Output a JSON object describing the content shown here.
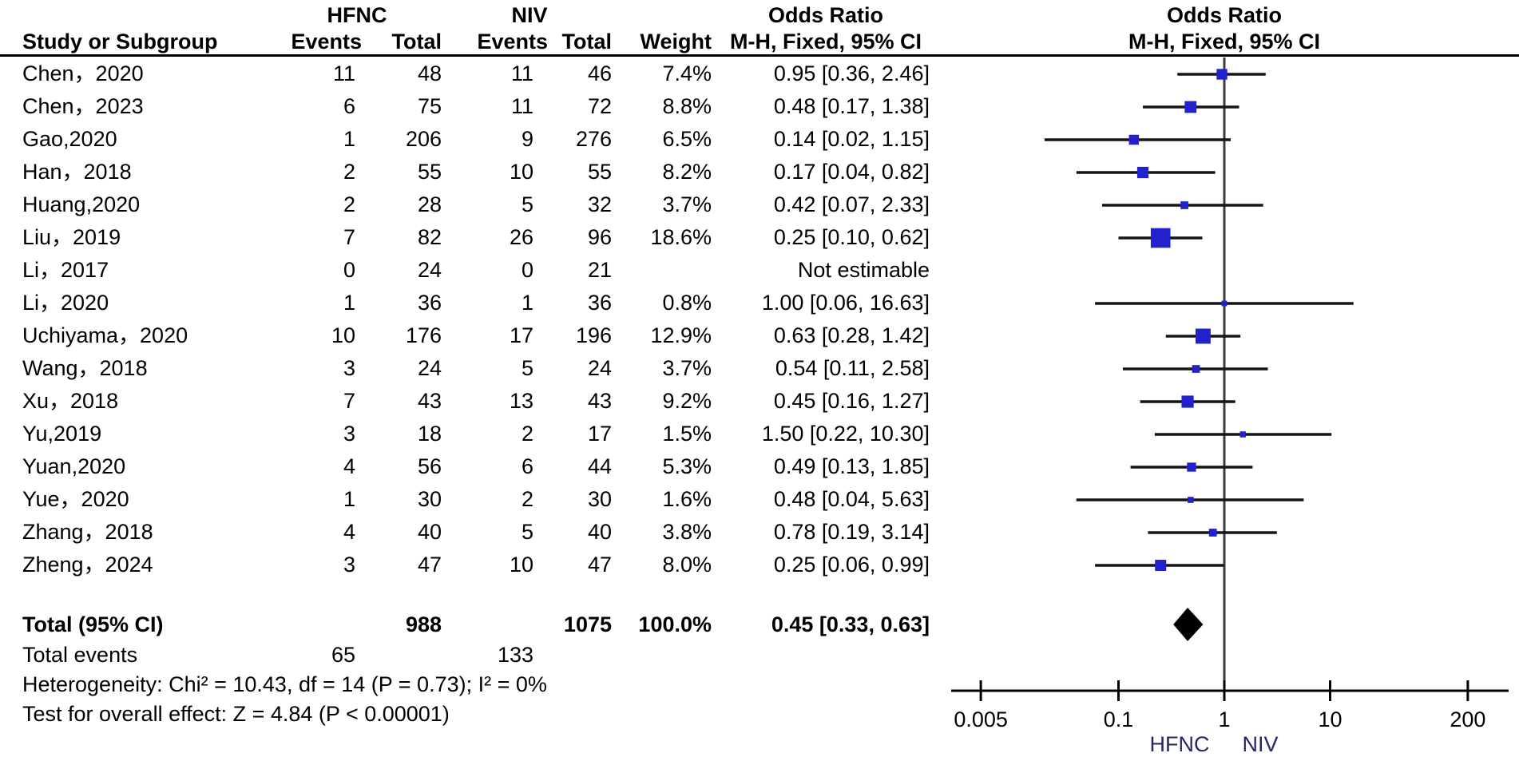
{
  "colors": {
    "marker_blue": "#2121cd",
    "ci_line": "#151515",
    "no_effect_line": "#3c3c3c",
    "axis_black": "#000000",
    "diamond_black": "#000000",
    "favours_navy": "#26266b",
    "text_black": "#000000"
  },
  "header": {
    "group1": "HFNC",
    "group2": "NIV",
    "col_study": "Study or Subgroup",
    "col_events1": "Events",
    "col_total1": "Total",
    "col_events2": "Events",
    "col_total2": "Total",
    "col_weight": "Weight",
    "or_title_left": "Odds Ratio",
    "or_subtitle_left": "M-H, Fixed, 95% CI",
    "or_title_plot": "Odds Ratio",
    "or_subtitle_plot": "M-H, Fixed, 95% CI"
  },
  "chart_data": {
    "type": "forest",
    "subtype": "meta-analysis odds ratio (M-H, Fixed, 95% CI)",
    "x_scale": "log10",
    "xlim": [
      0.0025,
      470
    ],
    "x_ticks": [
      0.005,
      0.1,
      1,
      10,
      200
    ],
    "x_tick_labels": [
      "0.005",
      "0.1",
      "1",
      "10",
      "200"
    ],
    "no_effect_value": 1,
    "favours_labels": [
      "HFNC",
      "NIV"
    ],
    "studies": [
      {
        "name": "Chen，2020",
        "hfnc_events": 11,
        "hfnc_total": 48,
        "niv_events": 11,
        "niv_total": 46,
        "weight": "7.4%",
        "or": 0.95,
        "ci_low": 0.36,
        "ci_high": 2.46,
        "ci_text": "0.95 [0.36, 2.46]"
      },
      {
        "name": "Chen，2023",
        "hfnc_events": 6,
        "hfnc_total": 75,
        "niv_events": 11,
        "niv_total": 72,
        "weight": "8.8%",
        "or": 0.48,
        "ci_low": 0.17,
        "ci_high": 1.38,
        "ci_text": "0.48 [0.17, 1.38]"
      },
      {
        "name": "Gao,2020",
        "hfnc_events": 1,
        "hfnc_total": 206,
        "niv_events": 9,
        "niv_total": 276,
        "weight": "6.5%",
        "or": 0.14,
        "ci_low": 0.02,
        "ci_high": 1.15,
        "ci_text": "0.14 [0.02, 1.15]"
      },
      {
        "name": "Han，2018",
        "hfnc_events": 2,
        "hfnc_total": 55,
        "niv_events": 10,
        "niv_total": 55,
        "weight": "8.2%",
        "or": 0.17,
        "ci_low": 0.04,
        "ci_high": 0.82,
        "ci_text": "0.17 [0.04, 0.82]"
      },
      {
        "name": "Huang,2020",
        "hfnc_events": 2,
        "hfnc_total": 28,
        "niv_events": 5,
        "niv_total": 32,
        "weight": "3.7%",
        "or": 0.42,
        "ci_low": 0.07,
        "ci_high": 2.33,
        "ci_text": "0.42 [0.07, 2.33]"
      },
      {
        "name": "Liu，2019",
        "hfnc_events": 7,
        "hfnc_total": 82,
        "niv_events": 26,
        "niv_total": 96,
        "weight": "18.6%",
        "or": 0.25,
        "ci_low": 0.1,
        "ci_high": 0.62,
        "ci_text": "0.25 [0.10, 0.62]"
      },
      {
        "name": "Li，2017",
        "hfnc_events": 0,
        "hfnc_total": 24,
        "niv_events": 0,
        "niv_total": 21,
        "weight": "",
        "or": null,
        "ci_low": null,
        "ci_high": null,
        "ci_text": "Not estimable"
      },
      {
        "name": "Li，2020",
        "hfnc_events": 1,
        "hfnc_total": 36,
        "niv_events": 1,
        "niv_total": 36,
        "weight": "0.8%",
        "or": 1.0,
        "ci_low": 0.06,
        "ci_high": 16.63,
        "ci_text": "1.00 [0.06, 16.63]"
      },
      {
        "name": "Uchiyama，2020",
        "hfnc_events": 10,
        "hfnc_total": 176,
        "niv_events": 17,
        "niv_total": 196,
        "weight": "12.9%",
        "or": 0.63,
        "ci_low": 0.28,
        "ci_high": 1.42,
        "ci_text": "0.63 [0.28, 1.42]"
      },
      {
        "name": "Wang，2018",
        "hfnc_events": 3,
        "hfnc_total": 24,
        "niv_events": 5,
        "niv_total": 24,
        "weight": "3.7%",
        "or": 0.54,
        "ci_low": 0.11,
        "ci_high": 2.58,
        "ci_text": "0.54 [0.11, 2.58]"
      },
      {
        "name": "Xu，2018",
        "hfnc_events": 7,
        "hfnc_total": 43,
        "niv_events": 13,
        "niv_total": 43,
        "weight": "9.2%",
        "or": 0.45,
        "ci_low": 0.16,
        "ci_high": 1.27,
        "ci_text": "0.45 [0.16, 1.27]"
      },
      {
        "name": "Yu,2019",
        "hfnc_events": 3,
        "hfnc_total": 18,
        "niv_events": 2,
        "niv_total": 17,
        "weight": "1.5%",
        "or": 1.5,
        "ci_low": 0.22,
        "ci_high": 10.3,
        "ci_text": "1.50 [0.22, 10.30]"
      },
      {
        "name": "Yuan,2020",
        "hfnc_events": 4,
        "hfnc_total": 56,
        "niv_events": 6,
        "niv_total": 44,
        "weight": "5.3%",
        "or": 0.49,
        "ci_low": 0.13,
        "ci_high": 1.85,
        "ci_text": "0.49 [0.13, 1.85]"
      },
      {
        "name": "Yue，2020",
        "hfnc_events": 1,
        "hfnc_total": 30,
        "niv_events": 2,
        "niv_total": 30,
        "weight": "1.6%",
        "or": 0.48,
        "ci_low": 0.04,
        "ci_high": 5.63,
        "ci_text": "0.48 [0.04, 5.63]"
      },
      {
        "name": "Zhang，2018",
        "hfnc_events": 4,
        "hfnc_total": 40,
        "niv_events": 5,
        "niv_total": 40,
        "weight": "3.8%",
        "or": 0.78,
        "ci_low": 0.19,
        "ci_high": 3.14,
        "ci_text": "0.78 [0.19, 3.14]"
      },
      {
        "name": "Zheng，2024",
        "hfnc_events": 3,
        "hfnc_total": 47,
        "niv_events": 10,
        "niv_total": 47,
        "weight": "8.0%",
        "or": 0.25,
        "ci_low": 0.06,
        "ci_high": 0.99,
        "ci_text": "0.25 [0.06, 0.99]"
      }
    ],
    "total": {
      "label": "Total (95% CI)",
      "hfnc_total": 988,
      "niv_total": 1075,
      "weight": "100.0%",
      "or": 0.45,
      "ci_low": 0.33,
      "ci_high": 0.63,
      "ci_text": "0.45 [0.33, 0.63]"
    }
  },
  "footer": {
    "total_events_label": "Total events",
    "total_events_hfnc": 65,
    "total_events_niv": 133,
    "heterogeneity": "Heterogeneity: Chi² = 10.43, df = 14 (P = 0.73); I² = 0%",
    "overall_effect": "Test for overall effect: Z = 4.84 (P < 0.00001)"
  }
}
